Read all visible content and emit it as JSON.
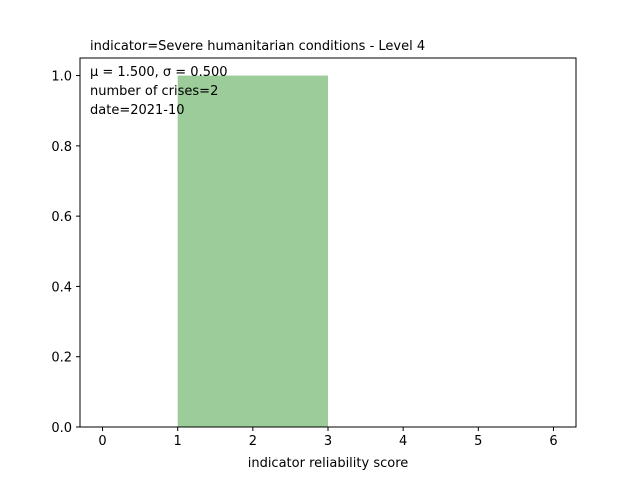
{
  "chart_data": {
    "type": "bar",
    "title": "indicator=Severe humanitarian conditions - Level 4",
    "xlabel": "indicator reliability score",
    "ylabel": "",
    "xlim": [
      -0.3,
      6.3
    ],
    "ylim": [
      0.0,
      1.05
    ],
    "xticks": [
      0,
      1,
      2,
      3,
      4,
      5,
      6
    ],
    "xtick_labels": [
      "0",
      "1",
      "2",
      "3",
      "4",
      "5",
      "6"
    ],
    "yticks": [
      0.0,
      0.2,
      0.4,
      0.6,
      0.8,
      1.0
    ],
    "ytick_labels": [
      "0.0",
      "0.2",
      "0.4",
      "0.6",
      "0.8",
      "1.0"
    ],
    "bars": [
      {
        "x_start": 1,
        "x_end": 3,
        "value": 1.0
      }
    ],
    "bar_color": "#9ccc9a",
    "grid": false,
    "annotations": [
      "μ = 1.500,  σ = 0.500",
      "number of crises=2",
      "date=2021-10"
    ]
  }
}
